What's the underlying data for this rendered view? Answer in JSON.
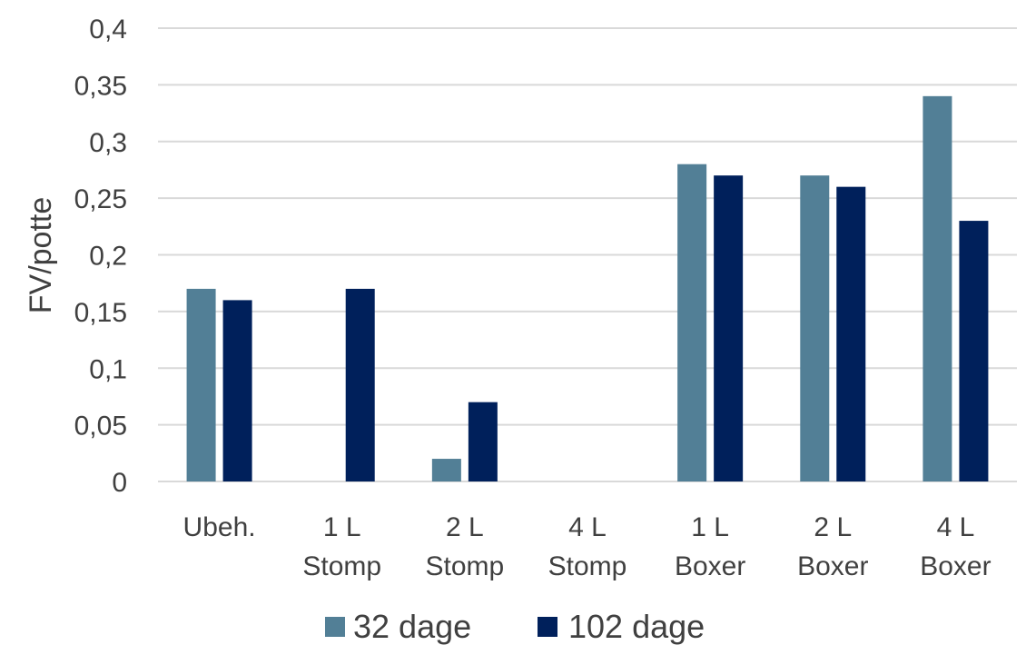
{
  "chart_data": {
    "type": "bar",
    "categories": [
      [
        "Ubeh."
      ],
      [
        "1 L",
        "Stomp"
      ],
      [
        "2 L",
        "Stomp"
      ],
      [
        "4 L",
        "Stomp"
      ],
      [
        "1 L",
        "Boxer"
      ],
      [
        "2 L",
        "Boxer"
      ],
      [
        "4 L",
        "Boxer"
      ]
    ],
    "series": [
      {
        "name": "32 dage",
        "color": "#527f96",
        "values": [
          0.17,
          null,
          0.02,
          null,
          0.28,
          0.27,
          0.34
        ]
      },
      {
        "name": "102 dage",
        "color": "#00205b",
        "values": [
          0.16,
          0.17,
          0.07,
          null,
          0.27,
          0.26,
          0.23
        ]
      }
    ],
    "title": "",
    "xlabel": "",
    "ylabel": "FV/potte",
    "ylim": [
      0,
      0.4
    ],
    "yticks": [
      0,
      0.05,
      0.1,
      0.15,
      0.2,
      0.25,
      0.3,
      0.35,
      0.4
    ],
    "ytick_labels": [
      "0",
      "0,05",
      "0,1",
      "0,15",
      "0,2",
      "0,25",
      "0,3",
      "0,35",
      "0,4"
    ],
    "grid": true,
    "legend_position": "bottom"
  }
}
